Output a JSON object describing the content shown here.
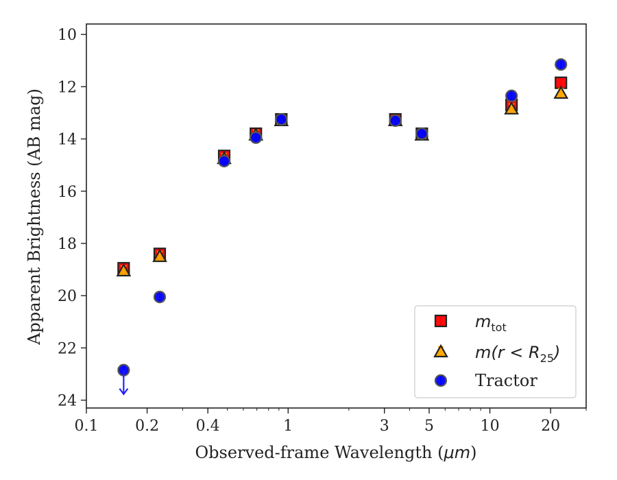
{
  "chart_data": {
    "type": "scatter",
    "xlabel_prefix": "Observed-frame Wavelength (",
    "xlabel_unit": "μm",
    "xlabel_suffix": ")",
    "ylabel": "Apparent Brightness (AB mag)",
    "x_scale": "log",
    "xlim": [
      0.1,
      30
    ],
    "ylim": [
      24.3,
      9.6
    ],
    "y_inverted": true,
    "grid": false,
    "legend_position": "lower-right",
    "x_ticks": [
      0.1,
      0.2,
      0.4,
      1,
      3,
      5,
      10,
      20
    ],
    "x_tick_labels": [
      "0.1",
      "0.2",
      "0.4",
      "1",
      "3",
      "5",
      "10",
      "20"
    ],
    "y_ticks": [
      10,
      12,
      14,
      16,
      18,
      20,
      22,
      24
    ],
    "y_tick_labels": [
      "10",
      "12",
      "14",
      "16",
      "18",
      "20",
      "22",
      "24"
    ],
    "series": [
      {
        "key": "mtot",
        "legend_main": "m",
        "legend_sub": "tot",
        "marker": "square",
        "color": "#ff0000",
        "errbar_color": "#e00000",
        "points": [
          {
            "x": 0.153,
            "y": 18.95
          },
          {
            "x": 0.231,
            "y": 18.4
          },
          {
            "x": 0.482,
            "y": 14.65
          },
          {
            "x": 0.692,
            "y": 13.8
          },
          {
            "x": 0.925,
            "y": 13.25
          },
          {
            "x": 3.4,
            "y": 13.25
          },
          {
            "x": 4.6,
            "y": 13.8
          },
          {
            "x": 12.8,
            "y": 12.7
          },
          {
            "x": 22.5,
            "y": 11.85
          }
        ]
      },
      {
        "key": "mr25",
        "legend_pre": "m(r < R",
        "legend_sub": "25",
        "legend_post": ")",
        "marker": "triangle",
        "color": "#ffa500",
        "errbar_color": "#ffa500",
        "points": [
          {
            "x": 0.153,
            "y": 19.05
          },
          {
            "x": 0.231,
            "y": 18.5
          },
          {
            "x": 0.482,
            "y": 14.75
          },
          {
            "x": 0.692,
            "y": 13.85
          },
          {
            "x": 0.925,
            "y": 13.3
          },
          {
            "x": 3.4,
            "y": 13.3
          },
          {
            "x": 4.6,
            "y": 13.85
          },
          {
            "x": 12.8,
            "y": 12.85
          },
          {
            "x": 22.5,
            "y": 12.25
          }
        ]
      },
      {
        "key": "tractor",
        "legend_label": "Tractor",
        "marker": "circle",
        "color": "#0000ff",
        "errbar_color": "#3333ff",
        "points": [
          {
            "x": 0.153,
            "y": 22.85,
            "upper_limit": true
          },
          {
            "x": 0.231,
            "y": 20.05
          },
          {
            "x": 0.482,
            "y": 14.85
          },
          {
            "x": 0.692,
            "y": 13.95
          },
          {
            "x": 0.925,
            "y": 13.25
          },
          {
            "x": 3.4,
            "y": 13.3
          },
          {
            "x": 4.6,
            "y": 13.8
          },
          {
            "x": 12.8,
            "y": 12.35
          },
          {
            "x": 22.5,
            "y": 11.15
          }
        ]
      }
    ]
  }
}
